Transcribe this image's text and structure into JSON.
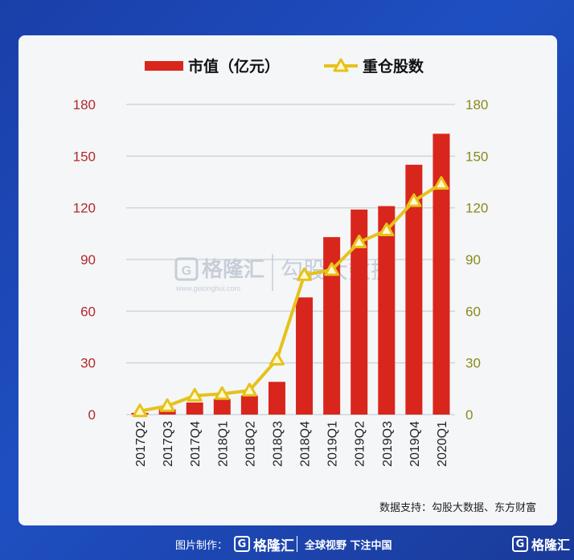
{
  "chart_data": {
    "type": "bar+line",
    "categories": [
      "2017Q2",
      "2017Q3",
      "2017Q4",
      "2018Q1",
      "2018Q2",
      "2018Q3",
      "2018Q4",
      "2019Q1",
      "2019Q2",
      "2019Q3",
      "2019Q4",
      "2020Q1"
    ],
    "series": [
      {
        "name": "市值（亿元）",
        "type": "bar",
        "axis": "left",
        "color": "#d9261c",
        "values": [
          1,
          3,
          7,
          9,
          11,
          19,
          68,
          103,
          119,
          121,
          145,
          163
        ]
      },
      {
        "name": "重仓股数",
        "type": "line",
        "axis": "right",
        "color": "#e6c21a",
        "values": [
          2,
          5,
          11,
          12,
          14,
          32,
          81,
          84,
          100,
          107,
          124,
          134
        ]
      }
    ],
    "y_left": {
      "ylim": [
        0,
        180
      ],
      "ticks": [
        "0",
        "30",
        "60",
        "90",
        "120",
        "150",
        "180"
      ],
      "color": "#b5282a"
    },
    "y_right": {
      "ylim": [
        0,
        180
      ],
      "ticks": [
        "0",
        "30",
        "60",
        "90",
        "120",
        "150",
        "180"
      ],
      "color": "#8a8a1a"
    },
    "grid": true,
    "legend_position": "top-center"
  },
  "watermark": {
    "brand": "格隆汇",
    "url": "www.gelonghui.com",
    "product": "勾股大数据"
  },
  "source_text": "数据支持：勾股大数据、东方财富",
  "footer": {
    "made_by": "图片制作：",
    "logo_text": "格隆汇",
    "slogan": "全球视野 下注中国",
    "corner_logo": "格隆汇"
  }
}
